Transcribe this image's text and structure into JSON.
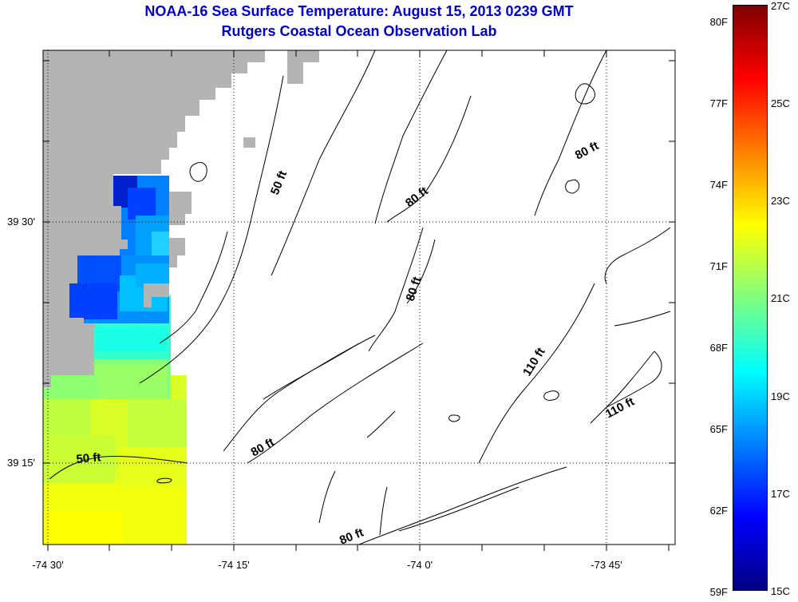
{
  "header": {
    "title": "NOAA-16 Sea Surface Temperature:  August 15, 2013 0239 GMT",
    "subtitle": "Rutgers Coastal Ocean Observation Lab"
  },
  "map": {
    "lat_ticks": [
      {
        "label": "39 30'",
        "lat": 39.5
      },
      {
        "label": "39 15'",
        "lat": 39.25
      }
    ],
    "lon_ticks": [
      {
        "label": "-74 30'",
        "lon": -74.5
      },
      {
        "label": "-74 15'",
        "lon": -74.25
      },
      {
        "label": "-74 0'",
        "lon": -74.0
      },
      {
        "label": "-73 45'",
        "lon": -73.75
      }
    ],
    "land_color": "#b4b4b4",
    "depth_labels": [
      {
        "text": "50 ft",
        "name": "isobath-50ft-north"
      },
      {
        "text": "50 ft",
        "name": "isobath-50ft-south"
      },
      {
        "text": "80 ft",
        "name": "isobath-80ft-north"
      },
      {
        "text": "80 ft",
        "name": "isobath-80ft-middle"
      },
      {
        "text": "80 ft",
        "name": "isobath-80ft-east"
      },
      {
        "text": "80 ft",
        "name": "isobath-80ft-southwest"
      },
      {
        "text": "80 ft",
        "name": "isobath-80ft-south"
      },
      {
        "text": "110 ft",
        "name": "isobath-110ft-center"
      },
      {
        "text": "110 ft",
        "name": "isobath-110ft-east"
      }
    ]
  },
  "colorbar": {
    "f_labels": [
      "80F",
      "77F",
      "74F",
      "71F",
      "68F",
      "65F",
      "62F",
      "59F"
    ],
    "c_labels": [
      "27C",
      "25C",
      "23C",
      "21C",
      "19C",
      "17C",
      "15C"
    ],
    "gradient_stops": [
      "#800000",
      "#ff0000",
      "#ff8000",
      "#ffff00",
      "#80ff80",
      "#00ffff",
      "#0080ff",
      "#0000ff",
      "#000080"
    ]
  }
}
